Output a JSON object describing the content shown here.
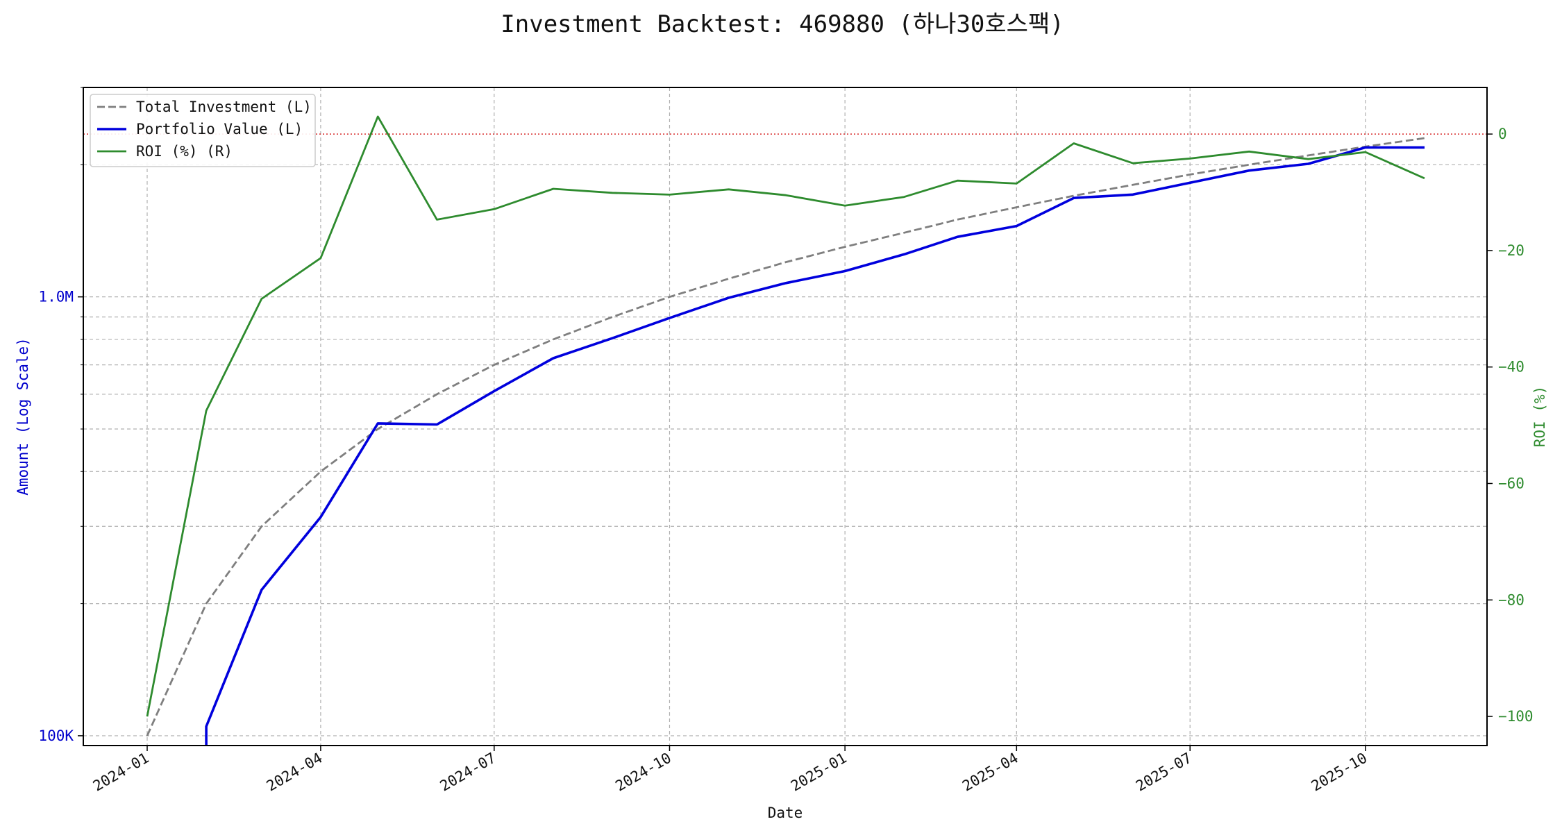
{
  "chart_data": {
    "type": "line",
    "title": "Investment Backtest: 469880 (하나30호스팩)",
    "xlabel": "Date",
    "ylabel_left": "Amount (Log Scale)",
    "ylabel_right": "ROI (%)",
    "yscale_left": "log",
    "ylim_left": [
      95000,
      3000000
    ],
    "ylim_right": [
      -105,
      8
    ],
    "grid": true,
    "legend_position": "upper-left",
    "reference_line": {
      "axis": "right",
      "value": 0,
      "color": "#d62728",
      "style": "dotted"
    },
    "x_ticks": [
      "2024-01",
      "2024-04",
      "2024-07",
      "2024-10",
      "2025-01",
      "2025-04",
      "2025-07",
      "2025-10"
    ],
    "x_tick_dates": [
      "2024-01-01",
      "2024-04-01",
      "2024-07-01",
      "2024-10-01",
      "2025-01-01",
      "2025-04-01",
      "2025-07-01",
      "2025-10-01"
    ],
    "y_ticks_left": [
      {
        "value": 100000,
        "label": "100K"
      },
      {
        "value": 1000000,
        "label": "1.0M"
      }
    ],
    "y_ticks_right": [
      0,
      -20,
      -40,
      -60,
      -80,
      -100
    ],
    "x": [
      "2024-01-01",
      "2024-02-01",
      "2024-03-01",
      "2024-04-01",
      "2024-05-01",
      "2024-06-01",
      "2024-07-01",
      "2024-08-01",
      "2024-09-01",
      "2024-10-01",
      "2024-11-01",
      "2024-12-01",
      "2025-01-01",
      "2025-02-01",
      "2025-03-01",
      "2025-04-01",
      "2025-05-01",
      "2025-06-01",
      "2025-07-01",
      "2025-08-01",
      "2025-09-01",
      "2025-10-01",
      "2025-11-01"
    ],
    "series": [
      {
        "name": "Total Investment (L)",
        "axis": "left",
        "color": "#7f7f7f",
        "style": "dashed",
        "values": [
          100000,
          200000,
          300000,
          400000,
          500000,
          600000,
          700000,
          800000,
          900000,
          1000000,
          1100000,
          1200000,
          1300000,
          1400000,
          1500000,
          1600000,
          1700000,
          1800000,
          1900000,
          2000000,
          2100000,
          2200000,
          2300000
        ]
      },
      {
        "name": "Portfolio Value (L)",
        "axis": "left",
        "color": "#0000dd",
        "style": "solid",
        "values": [
          0,
          105000,
          215000,
          315000,
          515000,
          512000,
          610000,
          725000,
          805000,
          895000,
          995000,
          1075000,
          1145000,
          1250000,
          1370000,
          1450000,
          1680000,
          1710000,
          1820000,
          1940000,
          2010000,
          2190000,
          2190000
        ]
      },
      {
        "name": "ROI (%) (R)",
        "axis": "right",
        "color": "#2e8b2e",
        "style": "solid",
        "values": [
          -100,
          -47.5,
          -28.3,
          -21.3,
          3.0,
          -14.7,
          -12.9,
          -9.4,
          -10.1,
          -10.4,
          -9.5,
          -10.5,
          -12.3,
          -10.8,
          -8.0,
          -8.5,
          -1.6,
          -5.0,
          -4.2,
          -3.0,
          -4.3,
          -3.1,
          -7.6
        ]
      }
    ]
  }
}
